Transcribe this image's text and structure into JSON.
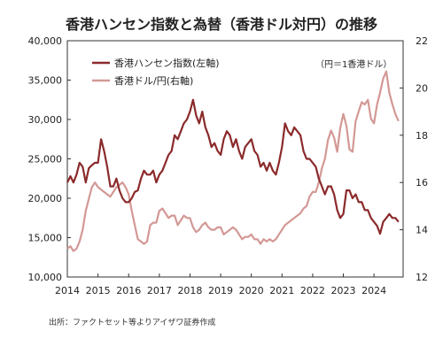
{
  "header": {
    "title": "香港ハンセン指数と為替（香港ドル対円）の推移"
  },
  "unit_note": "（円＝1香港ドル）",
  "source": "出所：ファクトセット等よりアイザワ証券作成",
  "colors": {
    "hsi": "#8b2a2b",
    "hkdjpy": "#d39895",
    "axis": "#333333"
  },
  "chart_data": {
    "type": "line",
    "x": [
      2014.0,
      2014.1,
      2014.2,
      2014.3,
      2014.4,
      2014.5,
      2014.6,
      2014.7,
      2014.8,
      2014.9,
      2015.0,
      2015.1,
      2015.2,
      2015.3,
      2015.4,
      2015.5,
      2015.6,
      2015.7,
      2015.8,
      2015.9,
      2016.0,
      2016.1,
      2016.2,
      2016.3,
      2016.4,
      2016.5,
      2016.6,
      2016.7,
      2016.8,
      2016.9,
      2017.0,
      2017.1,
      2017.2,
      2017.3,
      2017.4,
      2017.5,
      2017.6,
      2017.7,
      2017.8,
      2017.9,
      2018.0,
      2018.1,
      2018.2,
      2018.3,
      2018.4,
      2018.5,
      2018.6,
      2018.7,
      2018.8,
      2018.9,
      2019.0,
      2019.1,
      2019.2,
      2019.3,
      2019.4,
      2019.5,
      2019.6,
      2019.7,
      2019.8,
      2019.9,
      2020.0,
      2020.1,
      2020.2,
      2020.3,
      2020.4,
      2020.5,
      2020.6,
      2020.7,
      2020.8,
      2020.9,
      2021.0,
      2021.1,
      2021.2,
      2021.3,
      2021.4,
      2021.5,
      2021.6,
      2021.7,
      2021.8,
      2021.9,
      2022.0,
      2022.1,
      2022.2,
      2022.3,
      2022.4,
      2022.5,
      2022.6,
      2022.7,
      2022.8,
      2022.9,
      2023.0,
      2023.1,
      2023.2,
      2023.3,
      2023.4,
      2023.5,
      2023.6,
      2023.7,
      2023.8,
      2023.9,
      2024.0,
      2024.1,
      2024.2,
      2024.3,
      2024.4,
      2024.5,
      2024.6,
      2024.7,
      2024.8
    ],
    "series": [
      {
        "name": "香港ハンセン指数(左軸)",
        "axis": "left",
        "values": [
          22000,
          22800,
          22000,
          23000,
          24500,
          24000,
          22000,
          23800,
          24200,
          24500,
          24500,
          27500,
          26000,
          24000,
          21500,
          21500,
          22500,
          21000,
          20000,
          19500,
          19500,
          20000,
          20800,
          21000,
          22500,
          23500,
          23000,
          23000,
          23500,
          22000,
          23000,
          23500,
          24500,
          25500,
          26000,
          28000,
          27500,
          28500,
          29500,
          30000,
          31000,
          32500,
          30500,
          29500,
          31000,
          29000,
          28000,
          26500,
          27000,
          26000,
          25500,
          27500,
          28500,
          28000,
          26500,
          27500,
          26000,
          25000,
          26500,
          27000,
          27500,
          26000,
          25500,
          24000,
          24500,
          23500,
          24500,
          23500,
          23000,
          24500,
          26500,
          29500,
          28500,
          28000,
          29000,
          28500,
          28000,
          26000,
          25000,
          25000,
          24500,
          24000,
          22500,
          21500,
          20500,
          21500,
          21500,
          20500,
          18500,
          17500,
          18000,
          21000,
          21000,
          20000,
          20500,
          19500,
          19500,
          18500,
          18500,
          17500,
          17000,
          16500,
          15500,
          17000,
          17500,
          18000,
          17500,
          17500,
          17000
        ],
        "color": "#8b2a2b"
      },
      {
        "name": "香港ドル/円(右軸)",
        "axis": "right",
        "values": [
          13.2,
          13.3,
          13.1,
          13.2,
          13.5,
          14.0,
          14.8,
          15.3,
          15.8,
          16.0,
          15.8,
          15.7,
          15.6,
          15.5,
          15.4,
          15.6,
          15.8,
          15.9,
          16.0,
          15.8,
          15.5,
          14.8,
          14.2,
          13.6,
          13.5,
          13.4,
          13.5,
          14.2,
          14.3,
          14.3,
          14.8,
          14.9,
          14.7,
          14.5,
          14.6,
          14.6,
          14.2,
          14.4,
          14.6,
          14.5,
          14.5,
          14.1,
          13.9,
          14.0,
          14.2,
          14.3,
          14.1,
          14.0,
          14.0,
          14.1,
          14.1,
          13.8,
          13.9,
          14.0,
          14.1,
          14.0,
          13.8,
          13.6,
          13.7,
          13.7,
          13.8,
          13.6,
          13.6,
          13.4,
          13.6,
          13.5,
          13.6,
          13.5,
          13.6,
          13.8,
          14.0,
          14.2,
          14.3,
          14.4,
          14.5,
          14.6,
          14.7,
          14.9,
          15.0,
          15.4,
          15.6,
          15.6,
          16.0,
          16.6,
          17.0,
          17.8,
          18.2,
          17.9,
          17.3,
          18.3,
          18.9,
          18.4,
          17.4,
          17.3,
          18.6,
          19.0,
          19.4,
          19.3,
          19.5,
          18.7,
          18.5,
          19.3,
          19.8,
          20.4,
          20.7,
          19.8,
          19.3,
          18.9,
          18.6
        ],
        "color": "#d39895"
      }
    ],
    "xticks": [
      "2014",
      "2015",
      "2016",
      "2017",
      "2018",
      "2019",
      "2020",
      "2021",
      "2022",
      "2023",
      "2024"
    ],
    "yticks_left": [
      "10,000",
      "15,000",
      "20,000",
      "25,000",
      "30,000",
      "35,000",
      "40,000"
    ],
    "yticks_right": [
      "12",
      "14",
      "16",
      "18",
      "20",
      "22"
    ],
    "xlim": [
      2014,
      2024.95
    ],
    "ylim_left": [
      10000,
      40000
    ],
    "ylim_right": [
      12,
      22
    ],
    "legend_position": "top-left",
    "grid": false
  }
}
